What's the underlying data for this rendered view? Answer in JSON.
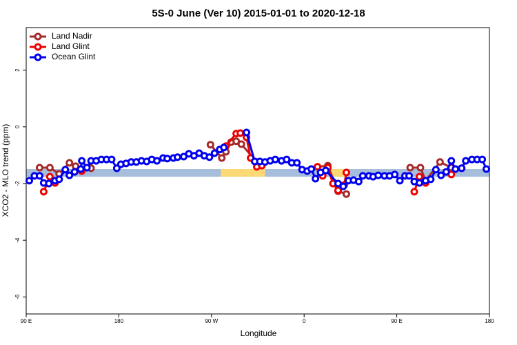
{
  "chart_data": {
    "type": "line",
    "title": "5S-0 June (Ver 10)   2015-01-01 to 2020-12-18",
    "x_label": "Longitude",
    "y_label": "XCO2 - MLO trend (ppm)",
    "xlim": [
      90,
      540
    ],
    "ylim": [
      -6.6,
      3.5
    ],
    "xticks": [
      {
        "value": 90,
        "label": "90 E"
      },
      180,
      {
        "value": 270,
        "label": "90 W"
      },
      {
        "value": 360,
        "label": "0"
      },
      {
        "value": 450,
        "label": "90 E"
      },
      {
        "value": 540,
        "label": "180"
      }
    ],
    "yticks": [
      -6,
      -4,
      -2,
      0,
      2
    ],
    "legend": "top-left",
    "band": {
      "ylim": [
        -1.76,
        -1.49
      ],
      "color": "#a6bddb"
    },
    "highlights": [
      {
        "xlim": [
          279,
          322
        ],
        "color": "#fcd975"
      },
      {
        "xlim": [
          385,
          400
        ],
        "color": "#fcd975"
      }
    ],
    "series": [
      {
        "name": "Land Nadir",
        "color": "#a52a2a",
        "x": [
          103,
          113,
          122,
          132,
          138,
          153,
          269,
          280,
          284,
          289,
          294,
          299,
          314,
          373,
          383,
          393,
          401,
          463,
          473,
          478,
          492,
          503,
          513
        ],
        "values": [
          -1.44,
          -1.44,
          -1.66,
          -1.27,
          -1.39,
          -1.46,
          -0.63,
          -1.1,
          -0.88,
          -0.54,
          -0.51,
          -0.61,
          -1.24,
          -1.41,
          -1.37,
          -2.27,
          -2.37,
          -1.44,
          -1.44,
          -1.9,
          -1.24,
          -1.44,
          -1.46
        ]
      },
      {
        "name": "Land Glint",
        "color": "#ee0000",
        "x": [
          107,
          113,
          118,
          144,
          284,
          294,
          298,
          304,
          308,
          314,
          319,
          373,
          378,
          383,
          388,
          393,
          399,
          401,
          467,
          472,
          478,
          503
        ],
        "values": [
          -2.29,
          -1.76,
          -1.98,
          -1.56,
          -0.68,
          -0.24,
          -0.22,
          -0.37,
          -1.1,
          -1.41,
          -1.37,
          -1.41,
          -1.73,
          -1.44,
          -2.0,
          -2.24,
          -2.05,
          -1.61,
          -2.29,
          -1.76,
          -1.98,
          -1.68
        ]
      },
      {
        "name": "Ocean Glint",
        "color": "#0000ee",
        "x": [
          93,
          98,
          103,
          107,
          112,
          118,
          122,
          128,
          132,
          137,
          143,
          144,
          149,
          153,
          158,
          163,
          168,
          173,
          178,
          182,
          187,
          192,
          197,
          202,
          207,
          212,
          217,
          223,
          227,
          233,
          237,
          243,
          248,
          253,
          258,
          263,
          268,
          273,
          278,
          282,
          304,
          312,
          317,
          322,
          327,
          332,
          338,
          343,
          348,
          353,
          358,
          363,
          367,
          371,
          376,
          381,
          393,
          398,
          403,
          408,
          413,
          417,
          423,
          427,
          432,
          438,
          443,
          448,
          453,
          458,
          462,
          467,
          472,
          478,
          483,
          488,
          493,
          498,
          503,
          507,
          513,
          517,
          523,
          528,
          533,
          537
        ],
        "values": [
          -1.9,
          -1.73,
          -1.73,
          -1.98,
          -2.0,
          -1.9,
          -1.85,
          -1.51,
          -1.71,
          -1.59,
          -1.49,
          -1.2,
          -1.44,
          -1.2,
          -1.2,
          -1.15,
          -1.15,
          -1.15,
          -1.46,
          -1.32,
          -1.29,
          -1.24,
          -1.24,
          -1.2,
          -1.22,
          -1.15,
          -1.2,
          -1.1,
          -1.12,
          -1.1,
          -1.07,
          -1.05,
          -0.95,
          -1.02,
          -0.93,
          -1.02,
          -1.07,
          -0.93,
          -0.8,
          -0.73,
          -0.2,
          -1.22,
          -1.22,
          -1.24,
          -1.2,
          -1.15,
          -1.2,
          -1.15,
          -1.27,
          -1.27,
          -1.51,
          -1.56,
          -1.49,
          -1.83,
          -1.61,
          -1.54,
          -2.0,
          -2.1,
          -1.9,
          -1.88,
          -1.93,
          -1.73,
          -1.73,
          -1.76,
          -1.71,
          -1.73,
          -1.73,
          -1.68,
          -1.9,
          -1.73,
          -1.73,
          -1.93,
          -1.98,
          -1.9,
          -1.85,
          -1.51,
          -1.71,
          -1.59,
          -1.2,
          -1.49,
          -1.46,
          -1.2,
          -1.15,
          -1.15,
          -1.15,
          -1.49
        ]
      }
    ]
  }
}
